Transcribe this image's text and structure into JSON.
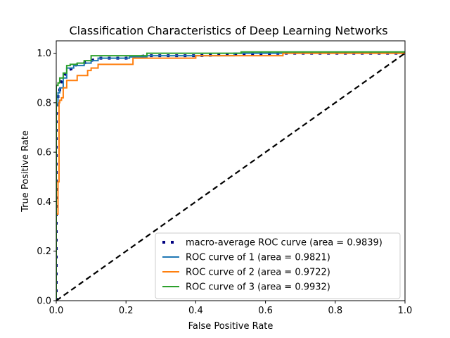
{
  "chart_data": {
    "type": "line",
    "title": "Classification Characteristics of Deep Learning Networks",
    "xlabel": "False Positive Rate",
    "ylabel": "True Positive Rate",
    "xlim": [
      0.0,
      1.0
    ],
    "ylim": [
      0.0,
      1.05
    ],
    "xticks": [
      "0.0",
      "0.2",
      "0.4",
      "0.6",
      "0.8",
      "1.0"
    ],
    "yticks": [
      "0.0",
      "0.2",
      "0.4",
      "0.6",
      "0.8",
      "1.0"
    ],
    "grid": false,
    "legend_position": "lower-right",
    "series": [
      {
        "name": "macro-average ROC curve (area = 0.9839)",
        "color": "#000080",
        "style": "dotted",
        "x": [
          0.0,
          0.0,
          0.005,
          0.005,
          0.01,
          0.01,
          0.02,
          0.03,
          0.05,
          0.05,
          0.08,
          0.1,
          0.12,
          0.2,
          0.26,
          0.4,
          0.51,
          0.65,
          1.0
        ],
        "y": [
          0.0,
          0.75,
          0.8,
          0.84,
          0.84,
          0.87,
          0.9,
          0.93,
          0.94,
          0.95,
          0.96,
          0.97,
          0.98,
          0.98,
          0.99,
          0.99,
          0.995,
          1.0,
          1.0
        ]
      },
      {
        "name": "ROC curve of 1 (area = 0.9821)",
        "color": "#1f77b4",
        "style": "solid",
        "x": [
          0.0,
          0.0,
          0.005,
          0.005,
          0.01,
          0.01,
          0.02,
          0.02,
          0.03,
          0.03,
          0.05,
          0.05,
          0.08,
          0.08,
          0.1,
          0.1,
          0.12,
          0.12,
          0.21,
          0.21,
          0.26,
          0.26,
          0.51,
          0.51,
          1.0
        ],
        "y": [
          0.0,
          0.79,
          0.79,
          0.84,
          0.84,
          0.86,
          0.86,
          0.9,
          0.9,
          0.94,
          0.94,
          0.95,
          0.95,
          0.96,
          0.96,
          0.97,
          0.97,
          0.98,
          0.98,
          0.985,
          0.985,
          0.99,
          0.99,
          1.0,
          1.0
        ]
      },
      {
        "name": "ROC curve of 2 (area = 0.9722)",
        "color": "#ff7f0e",
        "style": "solid",
        "x": [
          0.0,
          0.0,
          0.005,
          0.005,
          0.008,
          0.008,
          0.01,
          0.01,
          0.015,
          0.015,
          0.02,
          0.02,
          0.03,
          0.03,
          0.04,
          0.04,
          0.06,
          0.06,
          0.09,
          0.09,
          0.1,
          0.1,
          0.12,
          0.12,
          0.22,
          0.22,
          0.4,
          0.4,
          0.65,
          0.65,
          1.0
        ],
        "y": [
          0.0,
          0.35,
          0.35,
          0.48,
          0.48,
          0.8,
          0.8,
          0.81,
          0.81,
          0.82,
          0.82,
          0.86,
          0.86,
          0.89,
          0.89,
          0.89,
          0.89,
          0.91,
          0.91,
          0.93,
          0.93,
          0.94,
          0.94,
          0.955,
          0.955,
          0.98,
          0.98,
          0.99,
          0.99,
          1.0,
          1.0
        ]
      },
      {
        "name": "ROC curve of 3 (area = 0.9932)",
        "color": "#2ca02c",
        "style": "solid",
        "x": [
          0.0,
          0.0,
          0.005,
          0.005,
          0.01,
          0.01,
          0.02,
          0.02,
          0.03,
          0.03,
          0.04,
          0.04,
          0.06,
          0.06,
          0.08,
          0.08,
          0.1,
          0.1,
          0.26,
          0.26,
          0.53,
          0.53,
          1.0
        ],
        "y": [
          0.0,
          0.87,
          0.87,
          0.88,
          0.88,
          0.9,
          0.9,
          0.92,
          0.92,
          0.95,
          0.95,
          0.955,
          0.955,
          0.96,
          0.96,
          0.97,
          0.97,
          0.99,
          0.99,
          1.0,
          1.0,
          1.005,
          1.005
        ]
      },
      {
        "name": "",
        "color": "#000000",
        "style": "dashed",
        "x": [
          0.0,
          1.0
        ],
        "y": [
          0.0,
          1.0
        ]
      }
    ]
  }
}
